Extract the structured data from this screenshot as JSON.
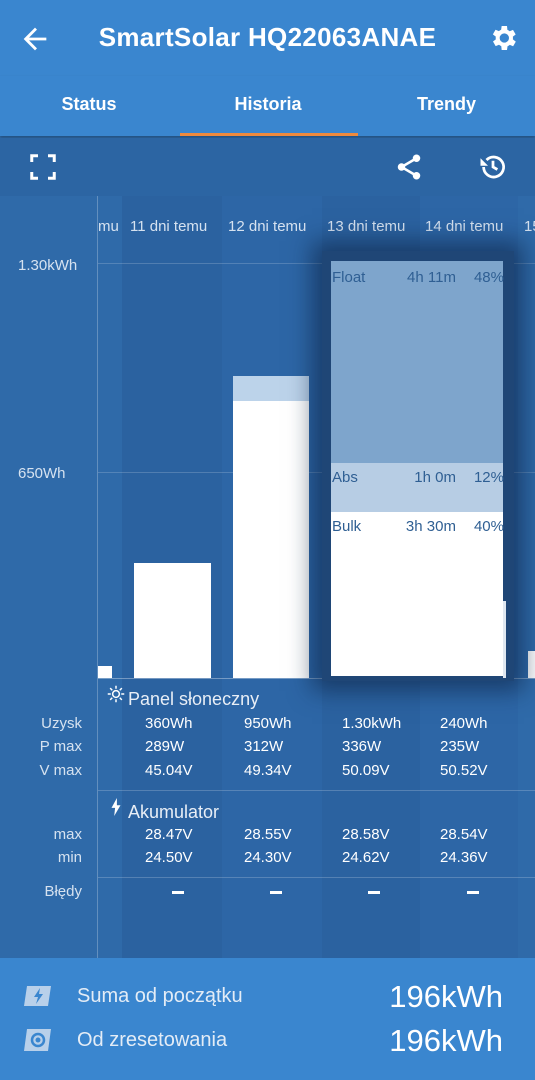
{
  "header": {
    "title": "SmartSolar HQ22063ANAE",
    "back_icon": "arrow-left-icon",
    "settings_icon": "gear-icon"
  },
  "tabs": [
    {
      "label": "Status",
      "active": false
    },
    {
      "label": "Historia",
      "active": true
    },
    {
      "label": "Trendy",
      "active": false
    }
  ],
  "accent_color": "#f08a3c",
  "toolbar": {
    "fullscreen_icon": "fullscreen-icon",
    "share_icon": "share-icon",
    "history_icon": "history-icon"
  },
  "chart": {
    "y_ticks": [
      "1.30kWh",
      "650Wh"
    ],
    "day_labels": [
      "mu",
      "11 dni temu",
      "12 dni temu",
      "13 dni temu",
      "14 dni temu",
      "15"
    ],
    "selected": {
      "float": {
        "label": "Float",
        "time": "4h 11m",
        "pct": "48%"
      },
      "abs": {
        "label": "Abs",
        "time": "1h 0m",
        "pct": "12%"
      },
      "bulk": {
        "label": "Bulk",
        "time": "3h 30m",
        "pct": "40%"
      }
    }
  },
  "chart_data": {
    "type": "bar",
    "categories": [
      "11 dni temu",
      "12 dni temu",
      "13 dni temu",
      "14 dni temu"
    ],
    "values_wh": [
      360,
      950,
      1300,
      240
    ],
    "ylim_wh": [
      0,
      1300
    ]
  },
  "solar": {
    "title": "Panel słoneczny",
    "icon": "sun-icon",
    "rows": [
      {
        "label": "Uzysk",
        "values": [
          "360Wh",
          "950Wh",
          "1.30kWh",
          "240Wh"
        ]
      },
      {
        "label": "P max",
        "values": [
          "289W",
          "312W",
          "336W",
          "235W"
        ]
      },
      {
        "label": "V max",
        "values": [
          "45.04V",
          "49.34V",
          "50.09V",
          "50.52V"
        ]
      }
    ]
  },
  "battery": {
    "title": "Akumulator",
    "icon": "bolt-icon",
    "rows": [
      {
        "label": "max",
        "values": [
          "28.47V",
          "28.55V",
          "28.58V",
          "28.54V"
        ]
      },
      {
        "label": "min",
        "values": [
          "24.50V",
          "24.30V",
          "24.62V",
          "24.36V"
        ]
      }
    ]
  },
  "errors": {
    "label": "Błędy"
  },
  "totals": [
    {
      "label": "Suma od początku",
      "value": "196kWh",
      "icon": "bolt-badge-icon"
    },
    {
      "label": "Od zresetowania",
      "value": "196kWh",
      "icon": "reset-circle-icon"
    }
  ]
}
